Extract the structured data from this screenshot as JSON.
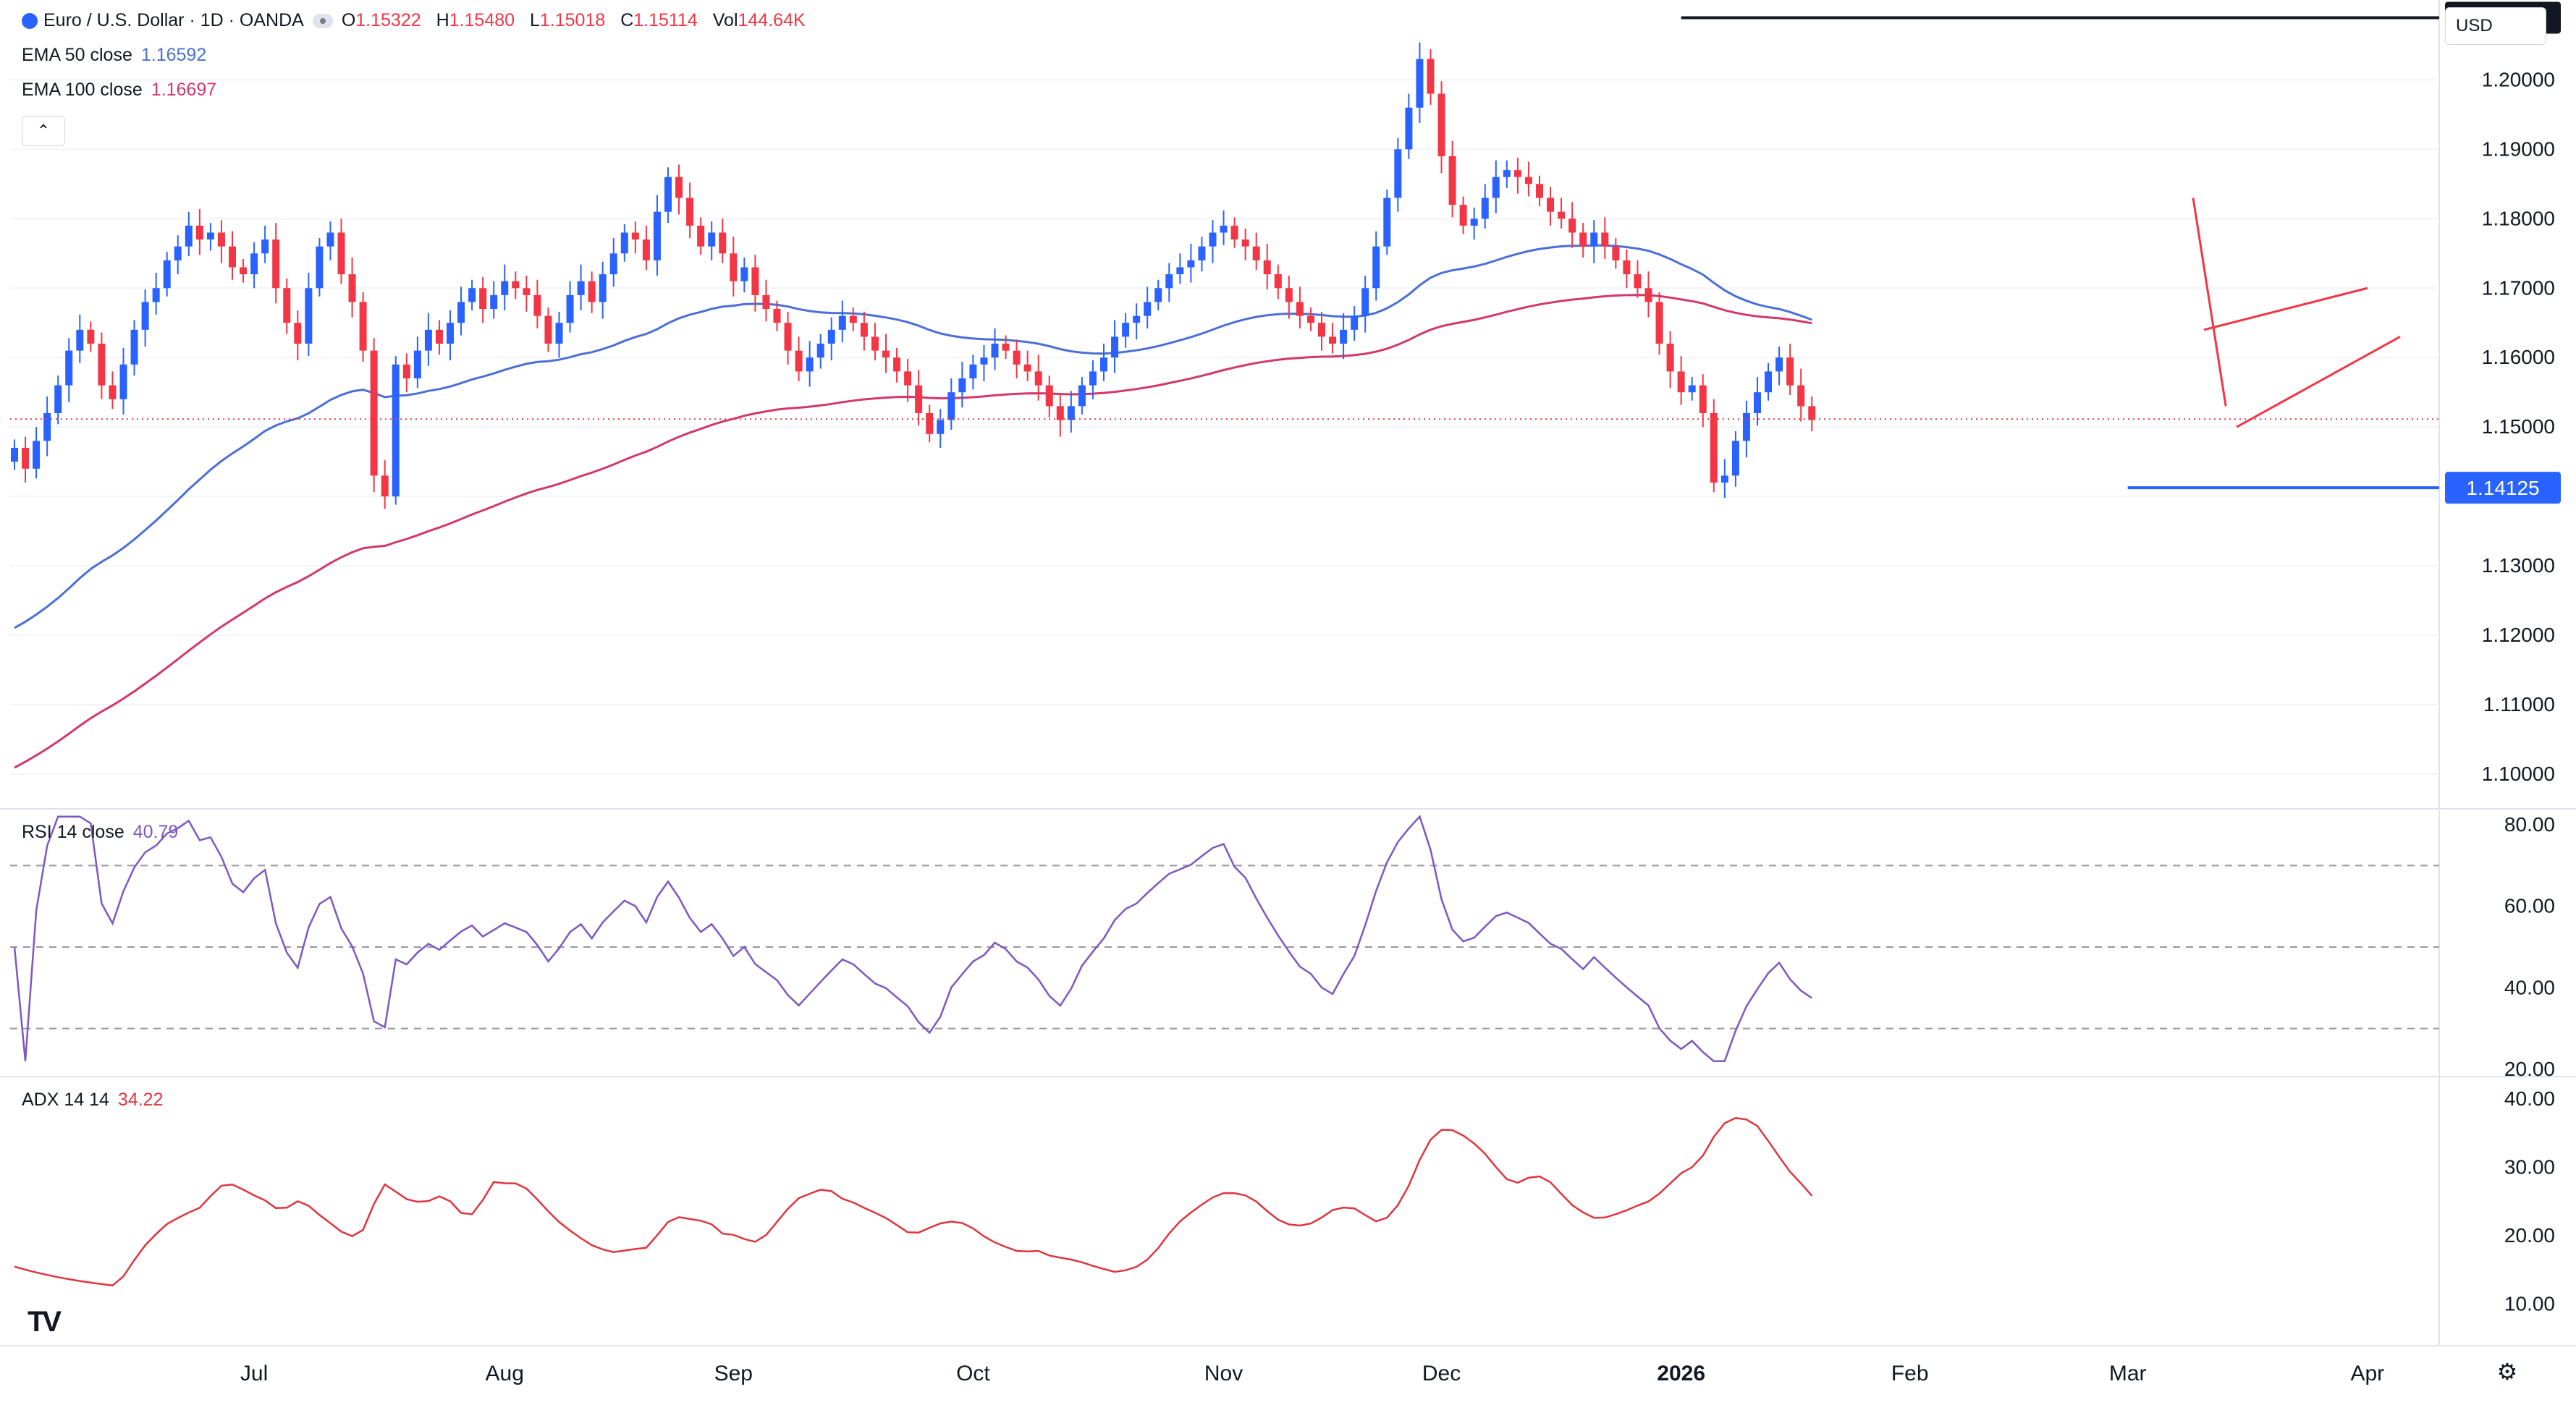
{
  "header": {
    "symbol": "Euro / U.S. Dollar · 1D · OANDA",
    "o_label": "O",
    "o_value": "1.15322",
    "h_label": "H",
    "h_value": "1.15480",
    "l_label": "L",
    "l_value": "1.15018",
    "c_label": "C",
    "c_value": "1.15114",
    "vol_label": "Vol",
    "vol_value": "144.64K"
  },
  "indicators": {
    "ema50": {
      "label": "EMA 50 close",
      "value": "1.16592",
      "color": "#4a6fd6"
    },
    "ema100": {
      "label": "EMA 100 close",
      "value": "1.16697",
      "color": "#d2386c"
    },
    "rsi": {
      "label": "RSI 14 close",
      "value": "40.79",
      "color": "#7e57c2"
    },
    "adx": {
      "label": "ADX 14 14",
      "value": "34.22",
      "color": "#e0353f"
    }
  },
  "toolbar": {
    "currency": "USD",
    "collapse_icon": "chevron-up-icon",
    "settings_icon": "gear-icon",
    "logo": "TV"
  },
  "colors": {
    "up": "#2962ff",
    "down": "#f23645",
    "grid": "#f0f3fa",
    "price_marker": "#f23645"
  },
  "chart_data": {
    "type": "candlestick",
    "price_axis": {
      "ylim": [
        1.095,
        1.2115
      ],
      "ticks": [
        "1.10000",
        "1.11000",
        "1.12000",
        "1.13000",
        "1.14000",
        "1.15000",
        "1.16000",
        "1.17000",
        "1.18000",
        "1.19000",
        "1.20000"
      ]
    },
    "x_labels": [
      {
        "label": "Jul",
        "index": 22
      },
      {
        "label": "Aug",
        "index": 45
      },
      {
        "label": "Sep",
        "index": 66
      },
      {
        "label": "Oct",
        "index": 88
      },
      {
        "label": "Nov",
        "index": 111
      },
      {
        "label": "Dec",
        "index": 131
      },
      {
        "label": "2026",
        "index": 153
      },
      {
        "label": "Feb",
        "index": 174
      },
      {
        "label": "Mar",
        "index": 194
      },
      {
        "label": "Apr",
        "index": 216
      }
    ],
    "current_price": 1.15114,
    "horizontal_lines": [
      {
        "value": 1.20895,
        "label": "1.20895",
        "color": "#131722",
        "from_index": 153,
        "label_bg": "#131722"
      },
      {
        "value": 1.14125,
        "label": "1.14125",
        "color": "#2962ff",
        "from_index": 194,
        "label_bg": "#2962ff"
      }
    ],
    "trend_lines": [
      {
        "from": [
          201,
          1.164
        ],
        "to": [
          216,
          1.17
        ],
        "color": "#f23645"
      },
      {
        "from": [
          204,
          1.15
        ],
        "to": [
          219,
          1.163
        ],
        "color": "#f23645"
      },
      {
        "from": [
          200,
          1.183
        ],
        "to": [
          203,
          1.153
        ],
        "color": "#f23645"
      }
    ],
    "candles_close": [
      1.147,
      1.144,
      1.148,
      1.152,
      1.156,
      1.161,
      1.164,
      1.162,
      1.156,
      1.154,
      1.159,
      1.164,
      1.168,
      1.17,
      1.174,
      1.176,
      1.179,
      1.177,
      1.178,
      1.176,
      1.173,
      1.172,
      1.175,
      1.177,
      1.17,
      1.165,
      1.162,
      1.17,
      1.176,
      1.178,
      1.172,
      1.168,
      1.161,
      1.143,
      1.14,
      1.159,
      1.157,
      1.161,
      1.164,
      1.162,
      1.165,
      1.168,
      1.17,
      1.167,
      1.169,
      1.171,
      1.17,
      1.169,
      1.166,
      1.162,
      1.165,
      1.169,
      1.171,
      1.168,
      1.172,
      1.175,
      1.178,
      1.177,
      1.174,
      1.181,
      1.186,
      1.183,
      1.179,
      1.176,
      1.178,
      1.175,
      1.171,
      1.173,
      1.169,
      1.167,
      1.165,
      1.161,
      1.158,
      1.16,
      1.162,
      1.164,
      1.166,
      1.165,
      1.163,
      1.161,
      1.16,
      1.158,
      1.156,
      1.152,
      1.149,
      1.151,
      1.155,
      1.157,
      1.159,
      1.16,
      1.162,
      1.161,
      1.159,
      1.158,
      1.156,
      1.153,
      1.151,
      1.153,
      1.156,
      1.158,
      1.16,
      1.163,
      1.165,
      1.166,
      1.168,
      1.17,
      1.172,
      1.173,
      1.174,
      1.176,
      1.178,
      1.179,
      1.177,
      1.176,
      1.174,
      1.172,
      1.17,
      1.168,
      1.166,
      1.165,
      1.163,
      1.162,
      1.164,
      1.166,
      1.17,
      1.176,
      1.183,
      1.19,
      1.196,
      1.203,
      1.198,
      1.189,
      1.182,
      1.179,
      1.18,
      1.183,
      1.186,
      1.187,
      1.186,
      1.185,
      1.183,
      1.181,
      1.18,
      1.178,
      1.176,
      1.178,
      1.176,
      1.174,
      1.172,
      1.17,
      1.168,
      1.162,
      1.158,
      1.155,
      1.156,
      1.152,
      1.142,
      1.143,
      1.148,
      1.152,
      1.155,
      1.158,
      1.16,
      1.156,
      1.153,
      1.151
    ]
  }
}
